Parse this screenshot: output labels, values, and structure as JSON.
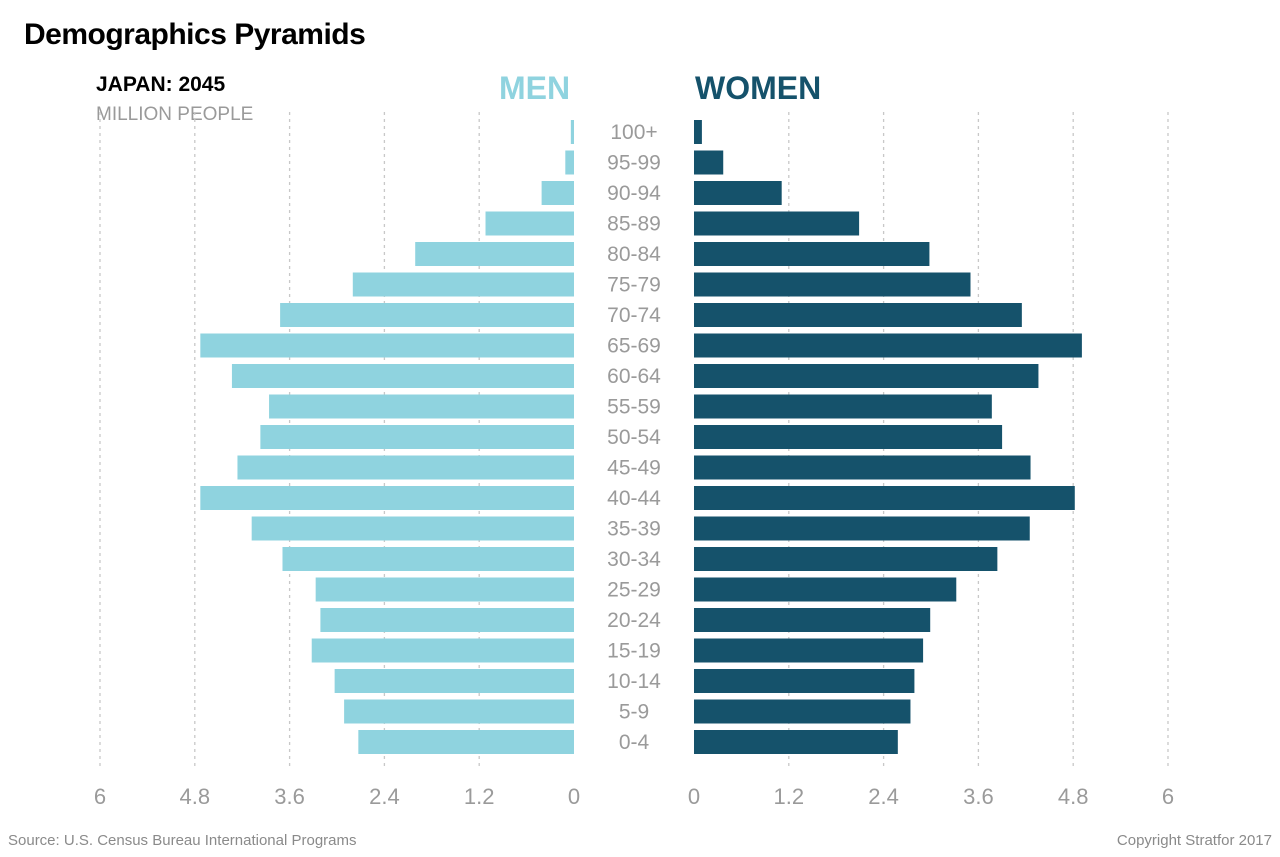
{
  "title": "Demographics Pyramids",
  "subtitle": "JAPAN: 2045",
  "unit": "MILLION PEOPLE",
  "legend": {
    "men": "MEN",
    "women": "WOMEN"
  },
  "source": "Source: U.S. Census Bureau International Programs",
  "copyright": "Copyright Stratfor 2017",
  "colors": {
    "men": "#8fd3df",
    "women": "#15526b",
    "grid": "#c8c8c8"
  },
  "chart_data": {
    "type": "bar",
    "orientation": "horizontal-pyramid",
    "categories": [
      "100+",
      "95-99",
      "90-94",
      "85-89",
      "80-84",
      "75-79",
      "70-74",
      "65-69",
      "60-64",
      "55-59",
      "50-54",
      "45-49",
      "40-44",
      "35-39",
      "30-34",
      "25-29",
      "20-24",
      "15-19",
      "10-14",
      "5-9",
      "0-4"
    ],
    "series": [
      {
        "name": "MEN",
        "values": [
          0.04,
          0.11,
          0.41,
          1.12,
          2.01,
          2.8,
          3.72,
          4.73,
          4.33,
          3.86,
          3.97,
          4.26,
          4.73,
          4.08,
          3.69,
          3.27,
          3.21,
          3.32,
          3.03,
          2.91,
          2.73
        ]
      },
      {
        "name": "WOMEN",
        "values": [
          0.1,
          0.37,
          1.11,
          2.09,
          2.98,
          3.5,
          4.15,
          4.91,
          4.36,
          3.77,
          3.9,
          4.26,
          4.82,
          4.25,
          3.84,
          3.32,
          2.99,
          2.9,
          2.79,
          2.74,
          2.58
        ]
      }
    ],
    "xlim": [
      0,
      6
    ],
    "xticks_men": [
      "6",
      "4.8",
      "3.6",
      "2.4",
      "1.2",
      "0"
    ],
    "xticks_women": [
      "0",
      "1.2",
      "2.4",
      "3.6",
      "4.8",
      "6"
    ],
    "grid": true
  }
}
